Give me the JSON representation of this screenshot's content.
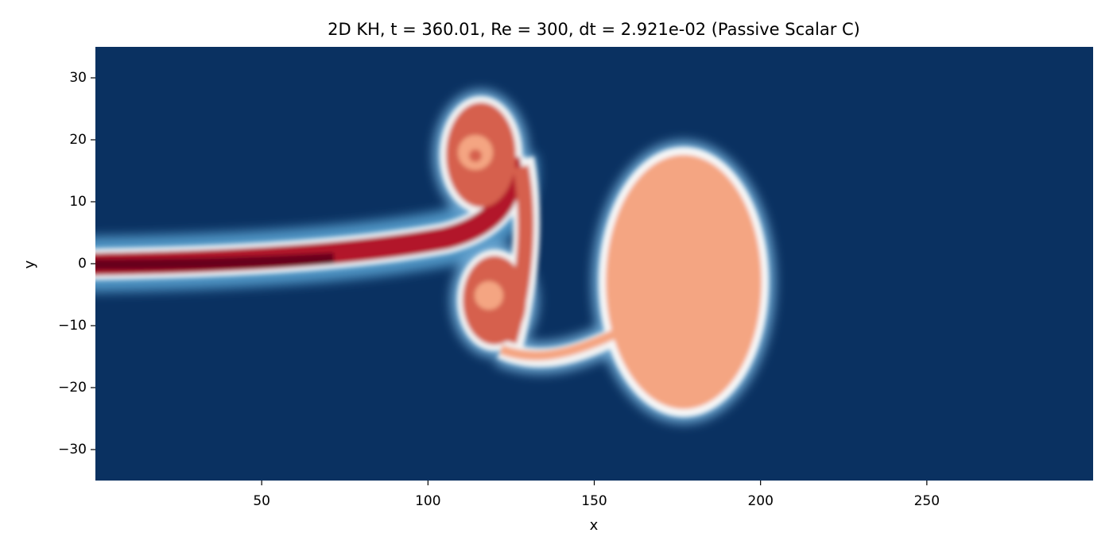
{
  "chart_data": {
    "type": "field",
    "title": "2D KH, t =  360.01, Re = 300, dt = 2.921e-02 (Passive Scalar C)",
    "x_label": "x",
    "y_label": "y",
    "xlim": [
      0,
      300
    ],
    "ylim": [
      -35,
      35
    ],
    "xticks": [
      50,
      100,
      150,
      200,
      250
    ],
    "yticks": [
      {
        "value": -30,
        "label": "−30"
      },
      {
        "value": -20,
        "label": "−20"
      },
      {
        "value": -10,
        "label": "−10"
      },
      0,
      10,
      20,
      30
    ]
  }
}
